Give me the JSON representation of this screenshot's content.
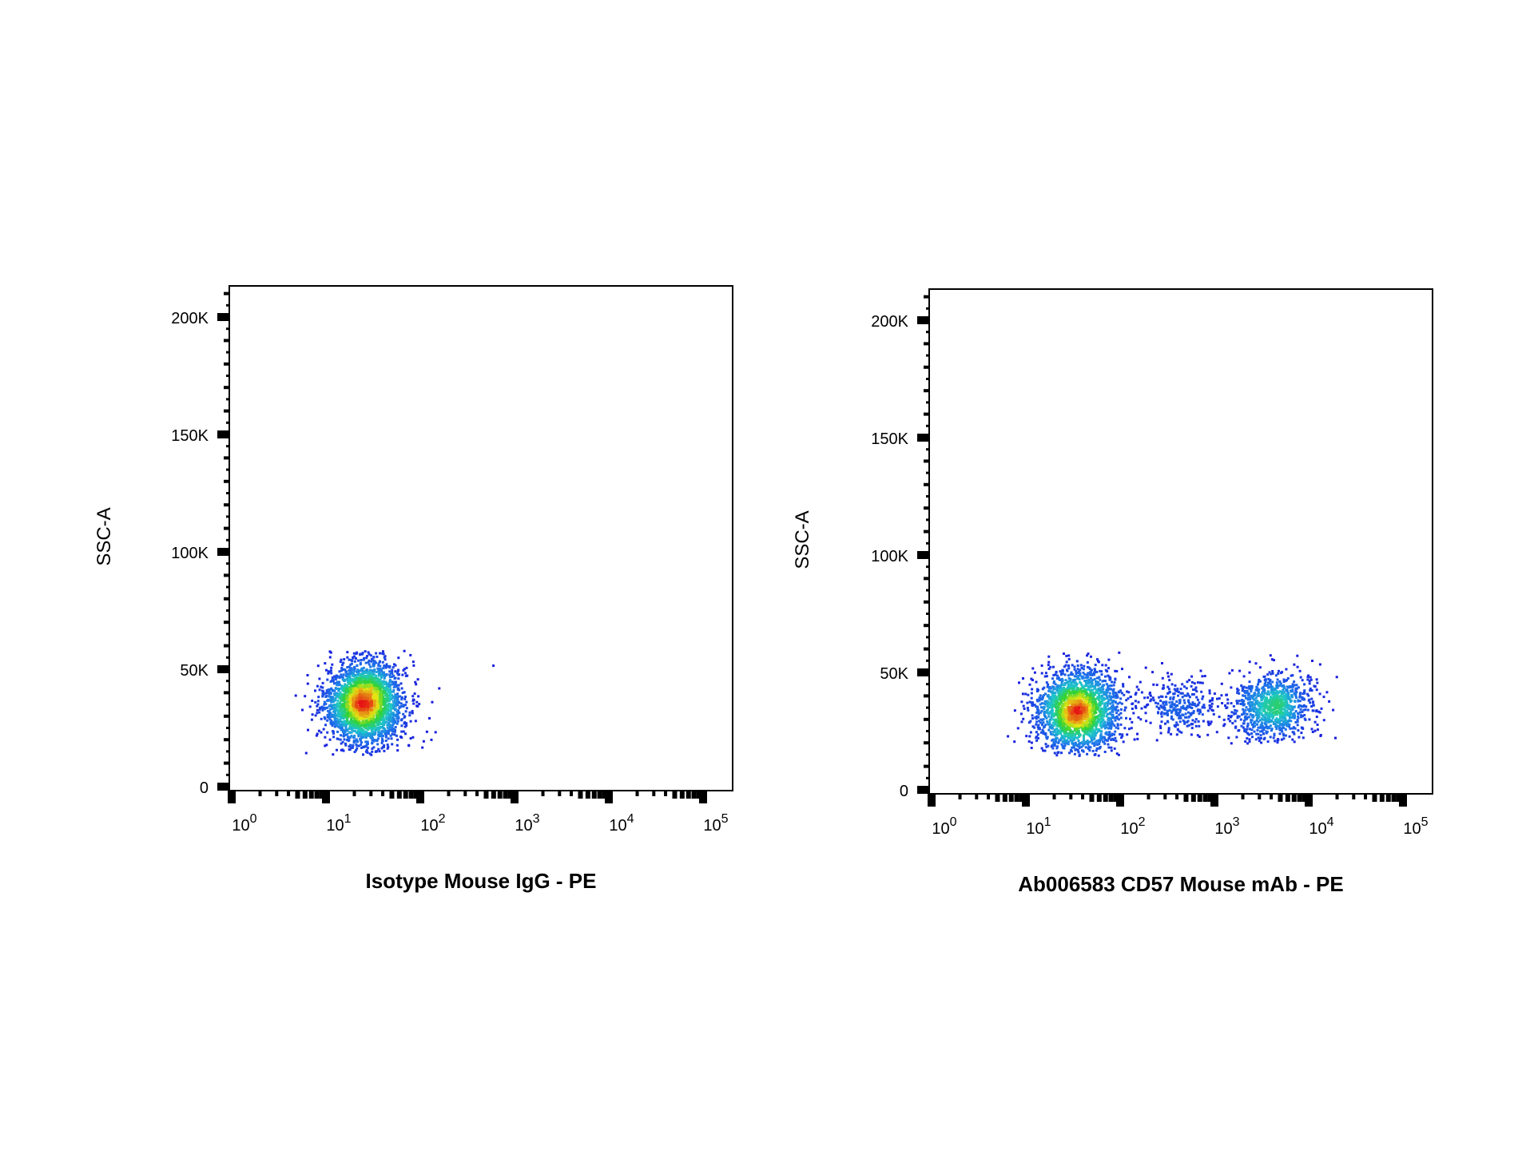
{
  "chart_data": [
    {
      "type": "scatter",
      "xlabel": "Isotype Mouse IgG - PE",
      "ylabel": "SSC-A",
      "x_scale": "log",
      "xlim": [
        1,
        100000
      ],
      "ylim": [
        0,
        215000
      ],
      "grid": false,
      "x_ticks": [
        {
          "value": 1,
          "label": "10",
          "exp": "0"
        },
        {
          "value": 10,
          "label": "10",
          "exp": "1"
        },
        {
          "value": 100,
          "label": "10",
          "exp": "2"
        },
        {
          "value": 1000,
          "label": "10",
          "exp": "3"
        },
        {
          "value": 10000,
          "label": "10",
          "exp": "4"
        },
        {
          "value": 100000,
          "label": "10",
          "exp": "5"
        }
      ],
      "y_ticks": [
        {
          "value": 0,
          "label": "0"
        },
        {
          "value": 50000,
          "label": "50K"
        },
        {
          "value": 100000,
          "label": "100K"
        },
        {
          "value": 150000,
          "label": "150K"
        },
        {
          "value": 200000,
          "label": "200K"
        }
      ],
      "populations": [
        {
          "x_center": 25,
          "y_center": 36000,
          "x_spread_decades": 0.38,
          "y_spread": 9000,
          "count": 2600,
          "y_max": 59000,
          "y_min": 14000
        }
      ]
    },
    {
      "type": "scatter",
      "xlabel": "Ab006583 CD57 Mouse mAb - PE",
      "ylabel": "SSC-A",
      "x_scale": "log",
      "xlim": [
        1,
        100000
      ],
      "ylim": [
        0,
        215000
      ],
      "grid": false,
      "x_ticks": [
        {
          "value": 1,
          "label": "10",
          "exp": "0"
        },
        {
          "value": 10,
          "label": "10",
          "exp": "1"
        },
        {
          "value": 100,
          "label": "10",
          "exp": "2"
        },
        {
          "value": 1000,
          "label": "10",
          "exp": "3"
        },
        {
          "value": 10000,
          "label": "10",
          "exp": "4"
        },
        {
          "value": 100000,
          "label": "10",
          "exp": "5"
        }
      ],
      "y_ticks": [
        {
          "value": 0,
          "label": "0"
        },
        {
          "value": 50000,
          "label": "50K"
        },
        {
          "value": 100000,
          "label": "100K"
        },
        {
          "value": 150000,
          "label": "150K"
        },
        {
          "value": 200000,
          "label": "200K"
        }
      ],
      "populations": [
        {
          "x_center": 35,
          "y_center": 34000,
          "x_spread_decades": 0.42,
          "y_spread": 9000,
          "count": 2200,
          "y_max": 59000,
          "y_min": 15000
        },
        {
          "x_center": 4000,
          "y_center": 36000,
          "x_spread_decades": 0.38,
          "y_spread": 7000,
          "count": 1000,
          "y_max": 59000,
          "y_min": 20000
        },
        {
          "x_center": 400,
          "y_center": 36000,
          "x_spread_decades": 0.35,
          "y_spread": 6000,
          "count": 300,
          "y_max": 59000,
          "y_min": 20000
        }
      ]
    }
  ],
  "colors": {
    "density_low": "#1a1adc",
    "density_mid_low": "#1ec8c8",
    "density_mid": "#32d232",
    "density_mid_high": "#e6e614",
    "density_high": "#e61414",
    "axis": "#000000"
  }
}
